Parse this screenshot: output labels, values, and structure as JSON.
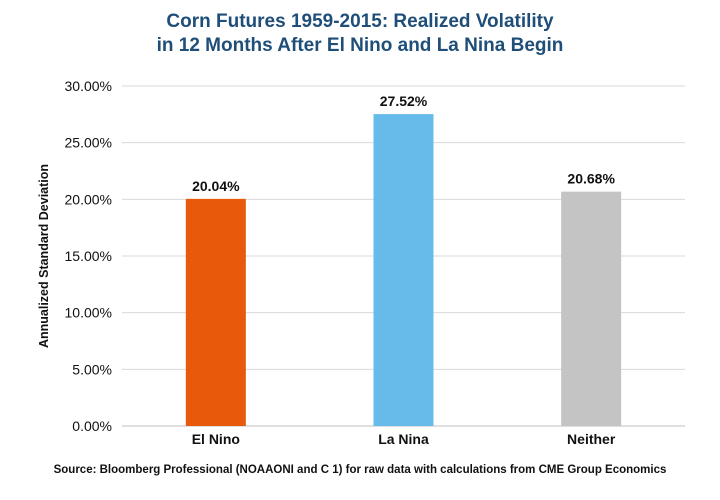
{
  "title": {
    "line1": "Corn Futures 1959-2015: Realized Volatility",
    "line2": "in 12 Months After El Nino and La Nina Begin"
  },
  "source": "Source: Bloomberg Professional (NOAAONI and C 1) for raw data with calculations from CME Group Economics",
  "colors": {
    "title": "#1f4e79",
    "el_nino": "#e8590c",
    "la_nina": "#66bbea",
    "neither": "#c4c4c4",
    "grid": "#d9d9d9"
  },
  "chart_data": {
    "type": "bar",
    "title": "Corn Futures 1959-2015: Realized Volatility in 12 Months After El Nino and La Nina Begin",
    "xlabel": "",
    "ylabel": "Annualized Standard Deviation",
    "categories": [
      "El Nino",
      "La Nina",
      "Neither"
    ],
    "values": [
      20.04,
      27.52,
      20.68
    ],
    "value_labels": [
      "20.04%",
      "27.52%",
      "20.68%"
    ],
    "bar_colors": [
      "#e8590c",
      "#66bbea",
      "#c4c4c4"
    ],
    "ylim": [
      0,
      30
    ],
    "yticks": [
      0,
      5,
      10,
      15,
      20,
      25,
      30
    ],
    "ytick_labels": [
      "0.00%",
      "5.00%",
      "10.00%",
      "15.00%",
      "20.00%",
      "25.00%",
      "30.00%"
    ],
    "grid": true,
    "legend": "none"
  }
}
